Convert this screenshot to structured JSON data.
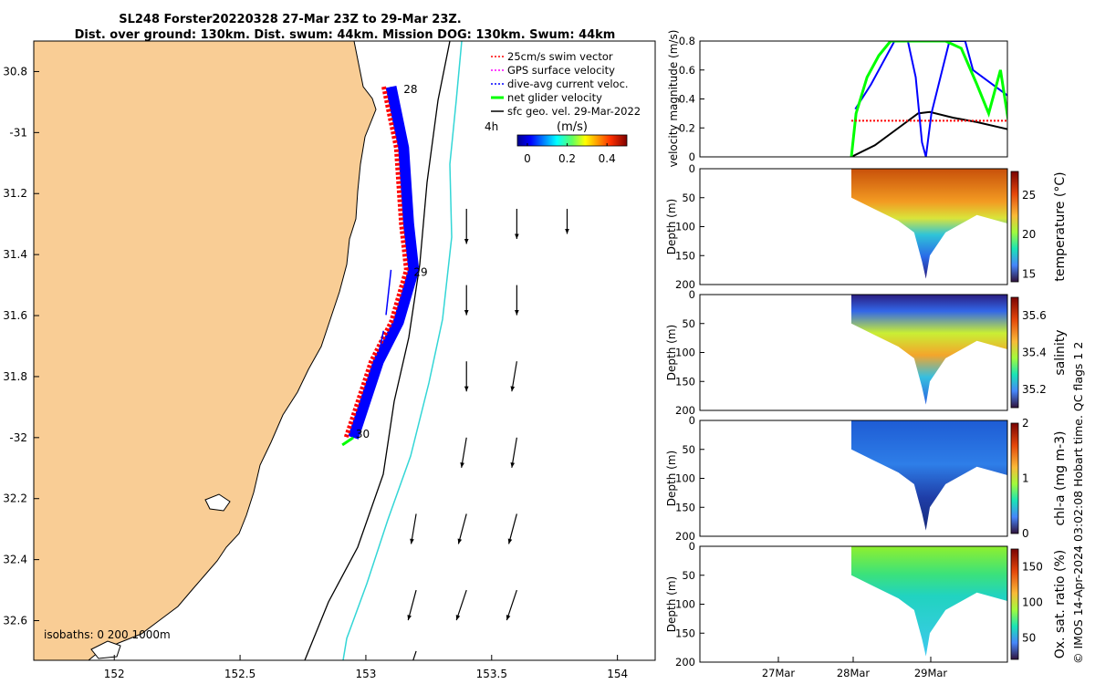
{
  "header": {
    "line1": "SL248 Forster20220328 27-Mar 23Z to 29-Mar 23Z.",
    "line2": "Dist. over ground: 130km. Dist. swum: 44km. Mission DOG: 130km. Swum: 44km"
  },
  "copyright": "© IMOS 14-Apr-2024 03:02:08 Hobart time. QC flags 1  2",
  "colors": {
    "land": "#f9cd95",
    "swim": "#ff0000",
    "gps": "#ff00ff",
    "current": "#0000ff",
    "net": "#00ff00",
    "geo": "#000000",
    "isobath200": "#000000",
    "isobath1000": "#33d6d6"
  },
  "chart_data": [
    {
      "type": "scatter",
      "name": "map",
      "xlim": [
        151.68,
        154.15
      ],
      "ylim": [
        -32.73,
        -30.7
      ],
      "x_ticks": [
        152,
        152.5,
        153,
        153.5,
        154
      ],
      "x_tick_labels": [
        "152",
        "152.5",
        "153",
        "153.5",
        "154"
      ],
      "y_ticks": [
        -30.8,
        -31,
        -31.2,
        -31.4,
        -31.6,
        -31.8,
        -32,
        -32.2,
        -32.4,
        -32.6
      ],
      "y_tick_labels": [
        "30.8",
        "-31",
        "31.2",
        "31.4",
        "31.6",
        "31.8",
        "-32",
        "32.2",
        "32.4",
        "32.6"
      ],
      "legend": {
        "position": "top-right",
        "items": [
          {
            "label": "25cm/s swim vector",
            "color": "#ff0000",
            "style": "dash"
          },
          {
            "label": "GPS surface velocity",
            "color": "#ff00ff",
            "style": "dash"
          },
          {
            "label": "dive-avg current veloc.",
            "color": "#0000ff",
            "style": "dash"
          },
          {
            "label": "net glider velocity",
            "color": "#00ff00",
            "style": "thick"
          },
          {
            "label": "sfc geo. vel. 29-Mar-2022",
            "color": "#000000",
            "style": "line"
          }
        ]
      },
      "colorbar": {
        "label": "(m/s)",
        "ticks": [
          0,
          0.2,
          0.4
        ],
        "tick_labels": [
          "0",
          "0.2",
          "0.4"
        ],
        "range": [
          -0.05,
          0.5
        ]
      },
      "scale_label": "4h",
      "day_labels": [
        {
          "text": "28",
          "lon": 153.15,
          "lat": -30.87
        },
        {
          "text": "29",
          "lon": 153.19,
          "lat": -31.47
        },
        {
          "text": "30",
          "lon": 152.96,
          "lat": -32.0
        }
      ],
      "isobath_label": "isobaths: 0   200 1000m",
      "glider_track": [
        [
          153.1,
          -30.85
        ],
        [
          153.15,
          -31.05
        ],
        [
          153.17,
          -31.3
        ],
        [
          153.19,
          -31.45
        ],
        [
          153.13,
          -31.62
        ],
        [
          153.05,
          -31.75
        ],
        [
          152.95,
          -32.0
        ]
      ],
      "current_vectors": [
        {
          "lon": 153.1,
          "lat": -31.45,
          "u": -0.05,
          "v": -0.45
        },
        {
          "lon": 153.07,
          "lat": -31.65,
          "u": -0.08,
          "v": -0.4
        },
        {
          "lon": 153.0,
          "lat": -31.85,
          "u": -0.1,
          "v": -0.35
        }
      ],
      "sfc_geo_vectors": [
        {
          "lon": 153.4,
          "lat": -31.25,
          "u": 0.0,
          "v": -0.35
        },
        {
          "lon": 153.6,
          "lat": -31.25,
          "u": 0.0,
          "v": -0.3
        },
        {
          "lon": 153.8,
          "lat": -31.25,
          "u": 0.0,
          "v": -0.25
        },
        {
          "lon": 153.4,
          "lat": -31.5,
          "u": 0.0,
          "v": -0.3
        },
        {
          "lon": 153.6,
          "lat": -31.5,
          "u": 0.0,
          "v": -0.3
        },
        {
          "lon": 153.4,
          "lat": -31.75,
          "u": 0.0,
          "v": -0.3
        },
        {
          "lon": 153.6,
          "lat": -31.75,
          "u": -0.05,
          "v": -0.3
        },
        {
          "lon": 153.4,
          "lat": -32.0,
          "u": -0.05,
          "v": -0.3
        },
        {
          "lon": 153.6,
          "lat": -32.0,
          "u": -0.05,
          "v": -0.3
        },
        {
          "lon": 153.2,
          "lat": -32.25,
          "u": -0.05,
          "v": -0.3
        },
        {
          "lon": 153.4,
          "lat": -32.25,
          "u": -0.08,
          "v": -0.3
        },
        {
          "lon": 153.6,
          "lat": -32.25,
          "u": -0.08,
          "v": -0.3
        },
        {
          "lon": 153.2,
          "lat": -32.5,
          "u": -0.08,
          "v": -0.3
        },
        {
          "lon": 153.4,
          "lat": -32.5,
          "u": -0.1,
          "v": -0.3
        },
        {
          "lon": 153.6,
          "lat": -32.5,
          "u": -0.1,
          "v": -0.3
        },
        {
          "lon": 153.2,
          "lat": -32.7,
          "u": -0.1,
          "v": -0.3
        }
      ]
    },
    {
      "type": "line",
      "name": "velocity magnitude",
      "ylabel": "velocity magnitude (m/s)",
      "ylim": [
        0,
        0.8
      ],
      "y_ticks": [
        0,
        0.2,
        0.4,
        0.6,
        0.8
      ],
      "y_tick_labels": [
        "0",
        "0.2",
        "0.4",
        "0.6",
        "0.8"
      ],
      "x_ticks": [
        "27Mar",
        "28Mar",
        "29Mar"
      ],
      "series": [
        {
          "color": "#000000",
          "x": [
            0.0,
            0.3,
            0.6,
            0.85,
            1.0,
            1.3,
            1.6,
            2.0
          ],
          "y": [
            0.0,
            0.08,
            0.2,
            0.3,
            0.31,
            0.27,
            0.24,
            0.19
          ]
        },
        {
          "color": "#0000ff",
          "x": [
            0.05,
            0.25,
            0.4,
            0.55,
            0.72,
            0.82,
            0.9,
            0.95,
            1.02,
            1.25,
            1.45,
            1.55,
            2.0
          ],
          "y": [
            0.33,
            0.5,
            0.65,
            0.8,
            0.8,
            0.55,
            0.1,
            0.0,
            0.3,
            0.8,
            0.8,
            0.6,
            0.42
          ]
        },
        {
          "color": "#00ff00",
          "x": [
            0.0,
            0.06,
            0.2,
            0.35,
            0.5,
            0.7,
            1.2,
            1.4,
            1.6,
            1.75,
            1.9,
            2.0
          ],
          "y": [
            0.0,
            0.3,
            0.55,
            0.7,
            0.8,
            0.8,
            0.8,
            0.75,
            0.5,
            0.3,
            0.6,
            0.25
          ]
        },
        {
          "color": "#ff0000",
          "x": [
            0.0,
            2.0
          ],
          "y": [
            0.25,
            0.25
          ]
        }
      ]
    },
    {
      "type": "heatmap",
      "name": "temperature",
      "cbar_label": "temperature (°C)",
      "cbar_ticks": [
        15,
        20,
        25
      ],
      "clim": [
        14,
        28
      ],
      "ylabel": "Depth (m)",
      "y_ticks": [
        0,
        50,
        100,
        150,
        200
      ],
      "surface_value": 25.5,
      "bottom_value": 15.5,
      "mid_value": 21
    },
    {
      "type": "heatmap",
      "name": "salinity",
      "cbar_label": "salinity",
      "cbar_ticks": [
        35.2,
        35.4,
        35.6
      ],
      "clim": [
        35.1,
        35.7
      ],
      "ylabel": "Depth (m)",
      "y_ticks": [
        0,
        50,
        100,
        150,
        200
      ],
      "surface_value": 35.2,
      "bottom_value": 35.3,
      "mid_value": 35.55
    },
    {
      "type": "heatmap",
      "name": "chl-a",
      "cbar_label": "chl-a (mg m-3)",
      "cbar_ticks": [
        0,
        1,
        2
      ],
      "clim": [
        0,
        2
      ],
      "ylabel": "Depth (m)",
      "y_ticks": [
        0,
        50,
        100,
        150,
        200
      ],
      "surface_value": 0.5,
      "bottom_value": 0.1,
      "mid_value": 0.5
    },
    {
      "type": "heatmap",
      "name": "oxygen",
      "cbar_label": "Ox. sat. ratio (%)",
      "cbar_ticks": [
        50,
        100,
        150
      ],
      "clim": [
        20,
        175
      ],
      "ylabel": "Depth (m)",
      "y_ticks": [
        0,
        50,
        100,
        150,
        200
      ],
      "surface_value": 125,
      "bottom_value": 85,
      "mid_value": 100
    }
  ]
}
